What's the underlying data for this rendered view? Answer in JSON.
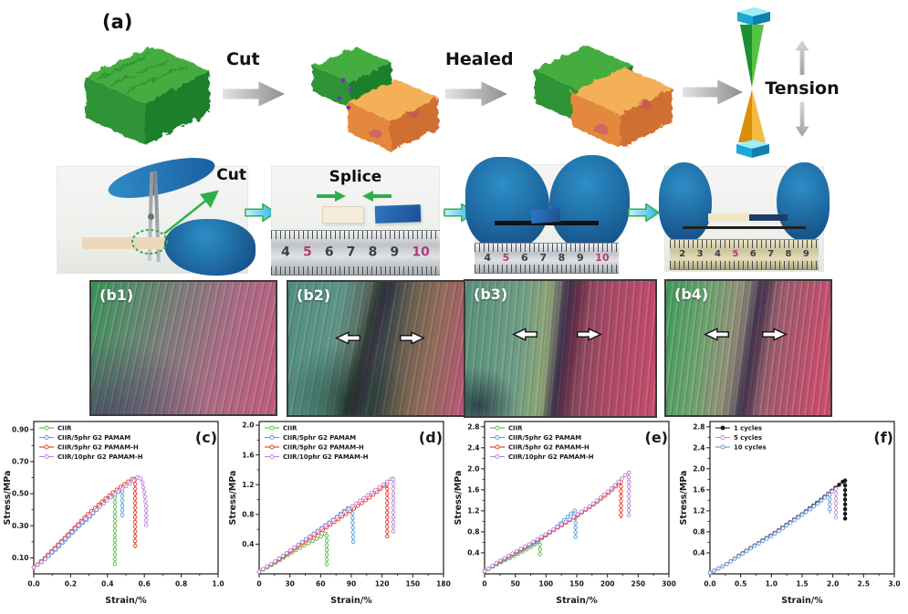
{
  "panel_a": {
    "label": "(a)",
    "cut_label": "Cut",
    "healed_label": "Healed",
    "tension_label": "Tension"
  },
  "photo_row": {
    "cut_label": "Cut",
    "splice_label": "Splice",
    "ruler1_numbers": [
      "4",
      "5",
      "6",
      "7",
      "8",
      "9",
      "10"
    ],
    "ruler2_numbers": [
      "4",
      "5",
      "6",
      "7",
      "8",
      "9",
      "10"
    ],
    "ruler3_numbers": [
      "2",
      "3",
      "4",
      "5",
      "6",
      "7",
      "8",
      "9"
    ],
    "red_numbers": [
      "5",
      "10"
    ]
  },
  "micro_row": {
    "panels": [
      {
        "label": "(b1)"
      },
      {
        "label": "(b2)"
      },
      {
        "label": "(b3)"
      },
      {
        "label": "(b4)"
      }
    ]
  },
  "colors": {
    "ciir_green": "#5bb84b",
    "pamam_blue": "#55a0d9",
    "pamamh_red": "#ec3323",
    "pamamh10_purple": "#b983d4",
    "cycle1_black": "#1a1a1a",
    "cycle5_purple": "#bb8fd6",
    "cycle10_blue": "#6495dc",
    "arrow_green": "#2fae4a",
    "glove_blue": "#2d8ec7",
    "clamp_cyan": "#1ba8d4"
  },
  "chart_data": [
    {
      "type": "line",
      "panel_label": "(c)",
      "xlabel": "Strain/%",
      "ylabel": "Stress/MPa",
      "xlim": [
        0,
        1.0
      ],
      "ylim": [
        0,
        0.95
      ],
      "xticks": [
        0.0,
        0.2,
        0.4,
        0.6,
        0.8,
        1.0
      ],
      "xtick_labels": [
        "0.0",
        "0.2",
        "0.4",
        "0.6",
        "0.8",
        "1.0"
      ],
      "yticks": [
        0.1,
        0.3,
        0.5,
        0.7,
        0.9
      ],
      "ytick_labels": [
        "0.10",
        "0.30",
        "0.50",
        "0.70",
        "0.90"
      ],
      "legend_position": "top-left",
      "grid": false,
      "series": [
        {
          "name": "CIIR",
          "color": "#5bb84b",
          "points": [
            [
              0,
              0.04
            ],
            [
              0.04,
              0.07
            ],
            [
              0.08,
              0.11
            ],
            [
              0.12,
              0.16
            ],
            [
              0.16,
              0.21
            ],
            [
              0.2,
              0.26
            ],
            [
              0.24,
              0.3
            ],
            [
              0.28,
              0.34
            ],
            [
              0.32,
              0.38
            ],
            [
              0.36,
              0.43
            ],
            [
              0.4,
              0.47
            ],
            [
              0.44,
              0.5
            ],
            [
              0.44,
              0.05
            ]
          ]
        },
        {
          "name": "CIIR/5phr G2 PAMAM",
          "color": "#55a0d9",
          "points": [
            [
              0,
              0.04
            ],
            [
              0.06,
              0.09
            ],
            [
              0.12,
              0.15
            ],
            [
              0.18,
              0.22
            ],
            [
              0.24,
              0.29
            ],
            [
              0.3,
              0.35
            ],
            [
              0.36,
              0.42
            ],
            [
              0.42,
              0.48
            ],
            [
              0.46,
              0.51
            ],
            [
              0.48,
              0.52
            ],
            [
              0.48,
              0.35
            ]
          ]
        },
        {
          "name": "CIIR/5phr G2 PAMAM-H",
          "color": "#ec3323",
          "points": [
            [
              0,
              0.04
            ],
            [
              0.06,
              0.1
            ],
            [
              0.12,
              0.17
            ],
            [
              0.18,
              0.24
            ],
            [
              0.24,
              0.31
            ],
            [
              0.3,
              0.38
            ],
            [
              0.36,
              0.44
            ],
            [
              0.42,
              0.5
            ],
            [
              0.48,
              0.55
            ],
            [
              0.53,
              0.59
            ],
            [
              0.55,
              0.6
            ],
            [
              0.55,
              0.16
            ]
          ]
        },
        {
          "name": "CIIR/10phr G2 PAMAM-H",
          "color": "#b983d4",
          "points": [
            [
              0,
              0.04
            ],
            [
              0.06,
              0.09
            ],
            [
              0.12,
              0.16
            ],
            [
              0.18,
              0.23
            ],
            [
              0.24,
              0.3
            ],
            [
              0.3,
              0.36
            ],
            [
              0.36,
              0.42
            ],
            [
              0.42,
              0.48
            ],
            [
              0.48,
              0.53
            ],
            [
              0.54,
              0.58
            ],
            [
              0.57,
              0.61
            ],
            [
              0.59,
              0.57
            ],
            [
              0.6,
              0.5
            ],
            [
              0.61,
              0.42
            ],
            [
              0.61,
              0.3
            ]
          ]
        }
      ]
    },
    {
      "type": "line",
      "panel_label": "(d)",
      "xlabel": "Strain/%",
      "ylabel": "Stress/MPa",
      "xlim": [
        0,
        180
      ],
      "ylim": [
        0,
        2.05
      ],
      "xticks": [
        0,
        30,
        60,
        90,
        120,
        150,
        180
      ],
      "xtick_labels": [
        "0",
        "30",
        "60",
        "90",
        "120",
        "150",
        "180"
      ],
      "yticks": [
        0.4,
        0.8,
        1.2,
        1.6,
        2.0
      ],
      "ytick_labels": [
        "0.4",
        "0.8",
        "1.2",
        "1.6",
        "2.0"
      ],
      "legend_position": "top-left",
      "grid": false,
      "series": [
        {
          "name": "CIIR",
          "color": "#5bb84b",
          "points": [
            [
              0,
              0.03
            ],
            [
              15,
              0.14
            ],
            [
              30,
              0.27
            ],
            [
              45,
              0.39
            ],
            [
              60,
              0.5
            ],
            [
              66,
              0.55
            ],
            [
              66,
              0.1
            ]
          ]
        },
        {
          "name": "CIIR/5phr G2 PAMAM",
          "color": "#55a0d9",
          "points": [
            [
              0,
              0.03
            ],
            [
              15,
              0.16
            ],
            [
              30,
              0.31
            ],
            [
              45,
              0.46
            ],
            [
              60,
              0.61
            ],
            [
              75,
              0.76
            ],
            [
              85,
              0.87
            ],
            [
              88,
              0.9
            ],
            [
              91,
              0.86
            ],
            [
              92,
              0.4
            ]
          ]
        },
        {
          "name": "CIIR/5phr G2 PAMAM-H",
          "color": "#ec3323",
          "points": [
            [
              0,
              0.03
            ],
            [
              20,
              0.2
            ],
            [
              40,
              0.39
            ],
            [
              60,
              0.57
            ],
            [
              80,
              0.76
            ],
            [
              100,
              0.95
            ],
            [
              115,
              1.1
            ],
            [
              125,
              1.22
            ],
            [
              125,
              0.5
            ]
          ]
        },
        {
          "name": "CIIR/10phr G2 PAMAM-H",
          "color": "#b983d4",
          "points": [
            [
              0,
              0.03
            ],
            [
              20,
              0.21
            ],
            [
              40,
              0.41
            ],
            [
              60,
              0.6
            ],
            [
              80,
              0.8
            ],
            [
              100,
              1.0
            ],
            [
              120,
              1.19
            ],
            [
              131,
              1.3
            ],
            [
              131,
              0.55
            ]
          ]
        }
      ]
    },
    {
      "type": "line",
      "panel_label": "(e)",
      "xlabel": "Strain/%",
      "ylabel": "Stress/MPa",
      "xlim": [
        0,
        300
      ],
      "ylim": [
        0,
        2.9
      ],
      "xticks": [
        0,
        50,
        100,
        150,
        200,
        250,
        300
      ],
      "xtick_labels": [
        "0",
        "50",
        "100",
        "150",
        "200",
        "250",
        "300"
      ],
      "yticks": [
        0.4,
        0.8,
        1.2,
        1.6,
        2.0,
        2.4,
        2.8
      ],
      "ytick_labels": [
        "0.4",
        "0.8",
        "1.2",
        "1.6",
        "2.0",
        "2.4",
        "2.8"
      ],
      "legend_position": "top-left",
      "grid": false,
      "series": [
        {
          "name": "CIIR",
          "color": "#5bb84b",
          "points": [
            [
              0,
              0.05
            ],
            [
              15,
              0.15
            ],
            [
              30,
              0.24
            ],
            [
              45,
              0.32
            ],
            [
              60,
              0.41
            ],
            [
              75,
              0.51
            ],
            [
              90,
              0.62
            ],
            [
              90,
              0.35
            ]
          ]
        },
        {
          "name": "CIIR/5phr G2 PAMAM",
          "color": "#55a0d9",
          "points": [
            [
              0,
              0.05
            ],
            [
              20,
              0.19
            ],
            [
              40,
              0.33
            ],
            [
              60,
              0.45
            ],
            [
              80,
              0.58
            ],
            [
              100,
              0.73
            ],
            [
              120,
              0.92
            ],
            [
              140,
              1.14
            ],
            [
              148,
              1.22
            ],
            [
              148,
              0.7
            ]
          ]
        },
        {
          "name": "CIIR/5phr G2 PAMAM-H",
          "color": "#ec3323",
          "points": [
            [
              0,
              0.05
            ],
            [
              25,
              0.24
            ],
            [
              50,
              0.4
            ],
            [
              75,
              0.57
            ],
            [
              100,
              0.74
            ],
            [
              125,
              0.92
            ],
            [
              150,
              1.1
            ],
            [
              175,
              1.3
            ],
            [
              200,
              1.52
            ],
            [
              215,
              1.68
            ],
            [
              222,
              1.78
            ],
            [
              222,
              1.05
            ]
          ]
        },
        {
          "name": "CIIR/10phr G2 PAMAM-H",
          "color": "#b983d4",
          "points": [
            [
              0,
              0.05
            ],
            [
              25,
              0.25
            ],
            [
              50,
              0.42
            ],
            [
              75,
              0.58
            ],
            [
              100,
              0.76
            ],
            [
              125,
              0.94
            ],
            [
              150,
              1.12
            ],
            [
              175,
              1.32
            ],
            [
              200,
              1.56
            ],
            [
              220,
              1.78
            ],
            [
              232,
              1.91
            ],
            [
              235,
              1.93
            ],
            [
              235,
              1.1
            ]
          ]
        }
      ]
    },
    {
      "type": "line",
      "panel_label": "(f)",
      "xlabel": "Strain/%",
      "ylabel": "Stress/MPa",
      "xlim": [
        0,
        3.0
      ],
      "ylim": [
        0,
        2.9
      ],
      "xticks": [
        0.0,
        0.5,
        1.0,
        1.5,
        2.0,
        2.5,
        3.0
      ],
      "xtick_labels": [
        "0.0",
        "0.5",
        "1.0",
        "1.5",
        "2.0",
        "2.5",
        "3.0"
      ],
      "yticks": [
        0.4,
        0.8,
        1.2,
        1.6,
        2.0,
        2.4,
        2.8
      ],
      "ytick_labels": [
        "0.4",
        "0.8",
        "1.2",
        "1.6",
        "2.0",
        "2.4",
        "2.8"
      ],
      "legend_position": "top-left",
      "grid": false,
      "series": [
        {
          "name": "1 cycles",
          "color": "#1a1a1a",
          "marker_fill": "#1a1a1a",
          "points": [
            [
              0,
              0.02
            ],
            [
              0.25,
              0.17
            ],
            [
              0.5,
              0.37
            ],
            [
              0.75,
              0.56
            ],
            [
              1.0,
              0.74
            ],
            [
              1.25,
              0.94
            ],
            [
              1.5,
              1.14
            ],
            [
              1.75,
              1.36
            ],
            [
              2.0,
              1.6
            ],
            [
              2.15,
              1.74
            ],
            [
              2.2,
              1.8
            ],
            [
              2.2,
              1.05
            ]
          ]
        },
        {
          "name": "5 cycles",
          "color": "#bb8fd6",
          "points": [
            [
              0,
              0.02
            ],
            [
              0.25,
              0.17
            ],
            [
              0.5,
              0.36
            ],
            [
              0.75,
              0.55
            ],
            [
              1.0,
              0.73
            ],
            [
              1.25,
              0.93
            ],
            [
              1.5,
              1.13
            ],
            [
              1.75,
              1.34
            ],
            [
              1.95,
              1.54
            ],
            [
              2.05,
              1.62
            ],
            [
              2.05,
              1.05
            ]
          ]
        },
        {
          "name": "10 cycles",
          "color": "#6495dc",
          "points": [
            [
              0,
              0.02
            ],
            [
              0.25,
              0.17
            ],
            [
              0.5,
              0.36
            ],
            [
              0.75,
              0.55
            ],
            [
              1.0,
              0.72
            ],
            [
              1.25,
              0.92
            ],
            [
              1.5,
              1.12
            ],
            [
              1.75,
              1.33
            ],
            [
              1.9,
              1.48
            ],
            [
              1.95,
              1.55
            ],
            [
              1.95,
              1.15
            ]
          ]
        }
      ]
    }
  ]
}
